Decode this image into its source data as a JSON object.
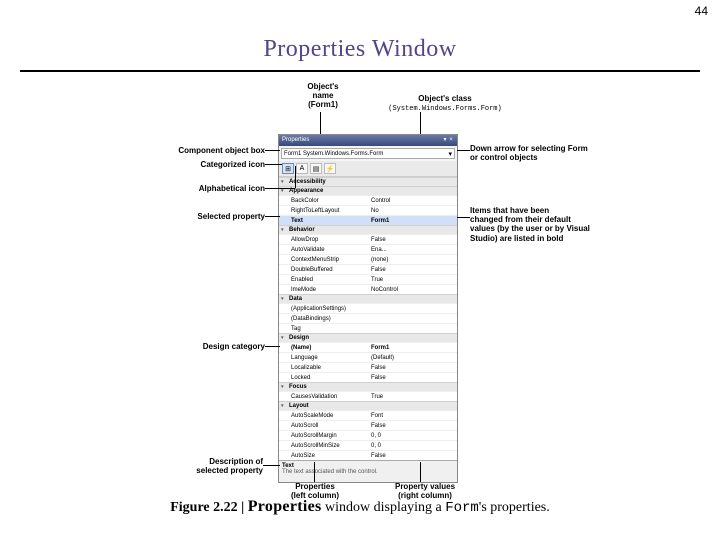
{
  "page_number": "44",
  "title": "Properties Window",
  "object_name_label": [
    "Object's",
    "name",
    "(Form1)"
  ],
  "object_class_label": [
    "Object's class",
    "(System.Windows.Forms.Form)"
  ],
  "callout_component": "Component object box",
  "callout_categorized": "Categorized icon",
  "callout_alphabetical": "Alphabetical icon",
  "callout_selected": "Selected property",
  "callout_design": "Design category",
  "callout_description": [
    "Description of",
    "selected property"
  ],
  "callout_props_col": [
    "Properties",
    "(left column)"
  ],
  "callout_vals_col": [
    "Property values",
    "(right column)"
  ],
  "callout_downarrow": [
    "Down arrow for selecting Form",
    "or control objects"
  ],
  "callout_bold": [
    "Items that have been",
    "changed from their default",
    "values (by the user or by Visual",
    "Studio) are listed in bold"
  ],
  "window": {
    "titlebar": "Properties",
    "combo": "Form1  System.Windows.Forms.Form",
    "desc_title": "Text",
    "desc_body": "The text associated with the control.",
    "categories": [
      {
        "name": "Accessibility",
        "rows": []
      },
      {
        "name": "Appearance",
        "rows": [
          {
            "n": "BackColor",
            "v": "Control"
          },
          {
            "n": "RightToLeftLayout",
            "v": "No"
          },
          {
            "n": "Text",
            "v": "Form1",
            "selected": true,
            "bold": true
          }
        ]
      },
      {
        "name": "Behavior",
        "rows": [
          {
            "n": "AllowDrop",
            "v": "False"
          },
          {
            "n": "AutoValidate",
            "v": "Ena..."
          },
          {
            "n": "ContextMenuStrip",
            "v": "(none)"
          },
          {
            "n": "DoubleBuffered",
            "v": "False"
          },
          {
            "n": "Enabled",
            "v": "True"
          },
          {
            "n": "ImeMode",
            "v": "NoControl"
          }
        ]
      },
      {
        "name": "Data",
        "rows": [
          {
            "n": "(ApplicationSettings)",
            "v": ""
          },
          {
            "n": "(DataBindings)",
            "v": ""
          },
          {
            "n": "Tag",
            "v": ""
          }
        ]
      },
      {
        "name": "Design",
        "rows": [
          {
            "n": "(Name)",
            "v": "Form1",
            "bold": true
          },
          {
            "n": "Language",
            "v": "(Default)"
          },
          {
            "n": "Localizable",
            "v": "False"
          },
          {
            "n": "Locked",
            "v": "False"
          }
        ]
      },
      {
        "name": "Focus",
        "rows": [
          {
            "n": "CausesValidation",
            "v": "True"
          }
        ]
      },
      {
        "name": "Layout",
        "rows": [
          {
            "n": "AutoScaleMode",
            "v": "Font"
          },
          {
            "n": "AutoScroll",
            "v": "False"
          },
          {
            "n": "AutoScrollMargin",
            "v": "0, 0"
          },
          {
            "n": "AutoScrollMinSize",
            "v": "0, 0"
          },
          {
            "n": "AutoSize",
            "v": "False"
          }
        ]
      }
    ]
  },
  "caption": {
    "prefix": "Figure 2.22 | ",
    "word_properties": "Properties",
    "mid": " window displaying a ",
    "word_form": "Form",
    "suffix": "'s properties."
  },
  "colors": {
    "title": "#554488",
    "titlebar_top": "#6a7aa8",
    "titlebar_bottom": "#3a4a78",
    "selected_row": "#cfe0f8"
  }
}
